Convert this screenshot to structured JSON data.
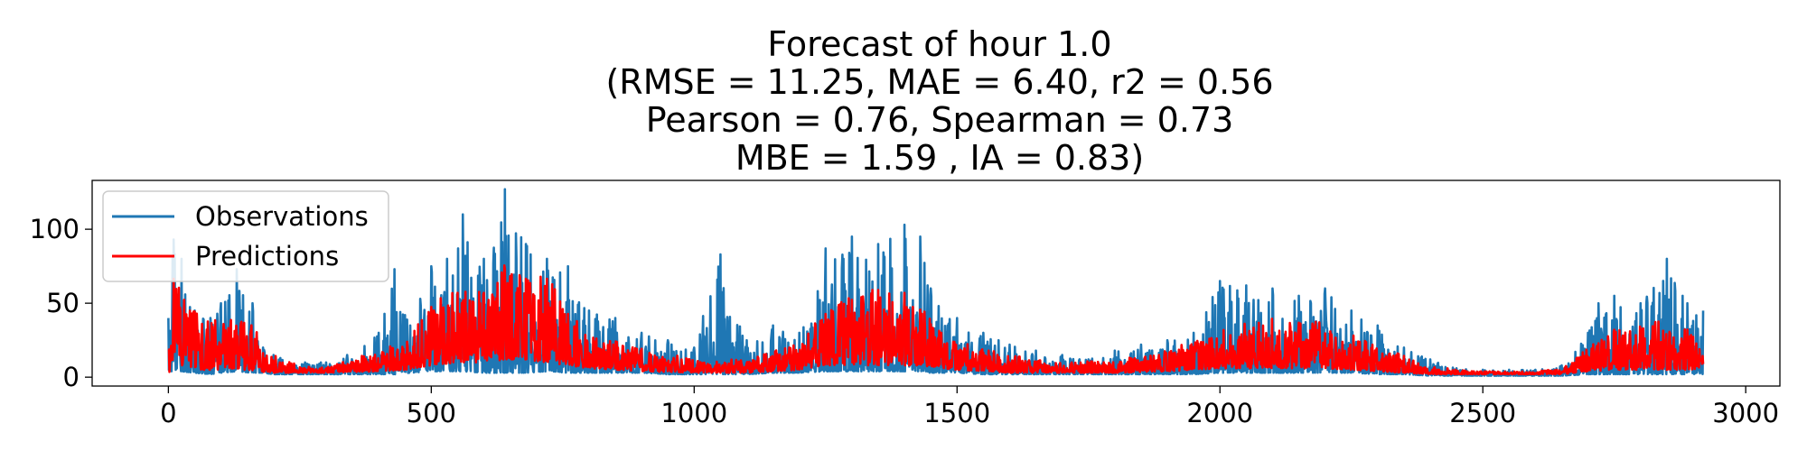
{
  "chart_data": {
    "type": "line",
    "title_lines": [
      "Forecast of hour 1.0",
      "(RMSE = 11.25, MAE = 6.40, r2 = 0.56",
      "Pearson = 0.76, Spearman = 0.73",
      "MBE = 1.59 , IA = 0.83)"
    ],
    "xlabel": "",
    "ylabel": "",
    "xlim": [
      -145,
      3065
    ],
    "ylim": [
      -6,
      133
    ],
    "x_ticks": [
      0,
      500,
      1000,
      1500,
      2000,
      2500,
      3000
    ],
    "x_tick_labels": [
      "0",
      "500",
      "1000",
      "1500",
      "2000",
      "2500",
      "3000"
    ],
    "y_ticks": [
      0,
      50,
      100
    ],
    "y_tick_labels": [
      "0",
      "50",
      "100"
    ],
    "grid": false,
    "legend_position": "upper-left",
    "n_points": 2920,
    "series": [
      {
        "name": "Observations",
        "color": "#1f77b4",
        "role": "observations"
      },
      {
        "name": "Predictions",
        "color": "#ff0000",
        "role": "predictions"
      }
    ],
    "observation_envelope": [
      [
        0,
        4,
        40
      ],
      [
        10,
        4,
        93
      ],
      [
        25,
        4,
        80
      ],
      [
        50,
        3,
        45
      ],
      [
        80,
        2,
        40
      ],
      [
        100,
        3,
        50
      ],
      [
        130,
        4,
        73
      ],
      [
        160,
        3,
        50
      ],
      [
        180,
        3,
        20
      ],
      [
        200,
        2,
        15
      ],
      [
        260,
        2,
        10
      ],
      [
        300,
        2,
        10
      ],
      [
        340,
        2,
        15
      ],
      [
        400,
        2,
        30
      ],
      [
        430,
        2,
        73
      ],
      [
        460,
        3,
        35
      ],
      [
        500,
        4,
        75
      ],
      [
        530,
        4,
        80
      ],
      [
        560,
        4,
        110
      ],
      [
        600,
        3,
        80
      ],
      [
        640,
        3,
        127
      ],
      [
        680,
        3,
        90
      ],
      [
        720,
        4,
        80
      ],
      [
        760,
        3,
        75
      ],
      [
        800,
        3,
        45
      ],
      [
        850,
        3,
        40
      ],
      [
        900,
        3,
        30
      ],
      [
        950,
        2,
        25
      ],
      [
        1000,
        2,
        20
      ],
      [
        1050,
        2,
        83
      ],
      [
        1100,
        2,
        25
      ],
      [
        1150,
        3,
        35
      ],
      [
        1200,
        3,
        30
      ],
      [
        1250,
        4,
        87
      ],
      [
        1300,
        4,
        95
      ],
      [
        1350,
        4,
        90
      ],
      [
        1400,
        4,
        103
      ],
      [
        1430,
        4,
        95
      ],
      [
        1450,
        3,
        60
      ],
      [
        1500,
        3,
        40
      ],
      [
        1550,
        2,
        30
      ],
      [
        1600,
        2,
        22
      ],
      [
        1650,
        2,
        18
      ],
      [
        1700,
        2,
        15
      ],
      [
        1750,
        2,
        12
      ],
      [
        1800,
        2,
        18
      ],
      [
        1850,
        2,
        22
      ],
      [
        1900,
        2,
        25
      ],
      [
        1950,
        2,
        30
      ],
      [
        2000,
        3,
        65
      ],
      [
        2050,
        3,
        62
      ],
      [
        2100,
        3,
        60
      ],
      [
        2150,
        3,
        55
      ],
      [
        2200,
        3,
        60
      ],
      [
        2250,
        3,
        45
      ],
      [
        2300,
        2,
        35
      ],
      [
        2350,
        2,
        20
      ],
      [
        2400,
        1,
        12
      ],
      [
        2450,
        1,
        6
      ],
      [
        2500,
        1,
        5
      ],
      [
        2550,
        1,
        5
      ],
      [
        2600,
        1,
        5
      ],
      [
        2650,
        1,
        8
      ],
      [
        2700,
        2,
        30
      ],
      [
        2720,
        2,
        50
      ],
      [
        2750,
        2,
        55
      ],
      [
        2800,
        2,
        50
      ],
      [
        2850,
        2,
        80
      ],
      [
        2880,
        2,
        55
      ],
      [
        2919,
        2,
        45
      ]
    ],
    "prediction_envelope": [
      [
        0,
        2,
        20
      ],
      [
        10,
        8,
        70
      ],
      [
        30,
        8,
        55
      ],
      [
        60,
        5,
        40
      ],
      [
        100,
        5,
        38
      ],
      [
        130,
        6,
        40
      ],
      [
        160,
        4,
        35
      ],
      [
        200,
        3,
        15
      ],
      [
        260,
        3,
        7
      ],
      [
        300,
        3,
        7
      ],
      [
        400,
        4,
        18
      ],
      [
        450,
        5,
        25
      ],
      [
        500,
        8,
        50
      ],
      [
        550,
        10,
        60
      ],
      [
        600,
        10,
        60
      ],
      [
        640,
        12,
        77
      ],
      [
        680,
        12,
        70
      ],
      [
        720,
        10,
        70
      ],
      [
        760,
        8,
        45
      ],
      [
        800,
        6,
        30
      ],
      [
        900,
        4,
        20
      ],
      [
        1000,
        3,
        12
      ],
      [
        1100,
        3,
        12
      ],
      [
        1150,
        4,
        18
      ],
      [
        1200,
        5,
        25
      ],
      [
        1250,
        8,
        45
      ],
      [
        1300,
        8,
        55
      ],
      [
        1350,
        8,
        62
      ],
      [
        1400,
        8,
        60
      ],
      [
        1430,
        8,
        48
      ],
      [
        1500,
        5,
        25
      ],
      [
        1600,
        3,
        15
      ],
      [
        1700,
        3,
        10
      ],
      [
        1800,
        3,
        12
      ],
      [
        1900,
        4,
        18
      ],
      [
        1950,
        5,
        25
      ],
      [
        2000,
        6,
        35
      ],
      [
        2050,
        6,
        40
      ],
      [
        2100,
        6,
        40
      ],
      [
        2150,
        6,
        38
      ],
      [
        2200,
        6,
        38
      ],
      [
        2250,
        5,
        30
      ],
      [
        2300,
        4,
        22
      ],
      [
        2400,
        2,
        7
      ],
      [
        2500,
        2,
        4
      ],
      [
        2600,
        2,
        4
      ],
      [
        2650,
        2,
        6
      ],
      [
        2700,
        4,
        20
      ],
      [
        2750,
        5,
        35
      ],
      [
        2800,
        5,
        35
      ],
      [
        2850,
        5,
        40
      ],
      [
        2900,
        5,
        30
      ],
      [
        2919,
        6,
        15
      ]
    ]
  }
}
